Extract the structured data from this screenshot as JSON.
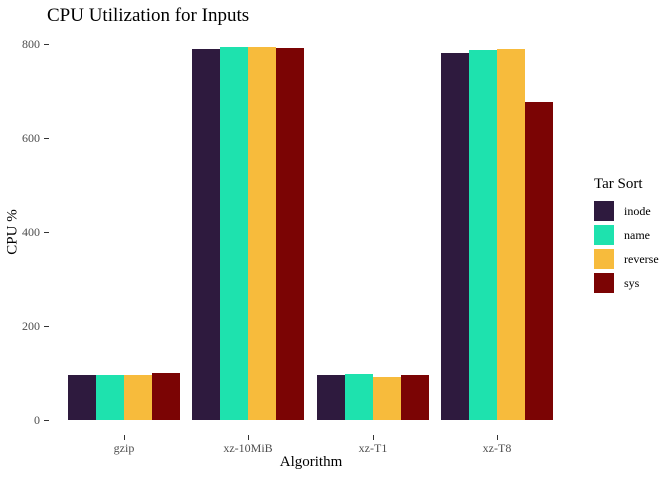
{
  "chart_data": {
    "type": "bar",
    "title": "CPU Utilization for Inputs",
    "xlabel": "Algorithm",
    "ylabel": "CPU %",
    "categories": [
      "gzip",
      "xz-10MiB",
      "xz-T1",
      "xz-T8"
    ],
    "series": [
      {
        "name": "inode",
        "color": "#2E1A3E",
        "values": [
          95,
          790,
          95,
          782
        ]
      },
      {
        "name": "name",
        "color": "#1EE2AE",
        "values": [
          96,
          794,
          97,
          788
        ]
      },
      {
        "name": "reverse",
        "color": "#F7BB3C",
        "values": [
          95,
          794,
          91,
          790
        ]
      },
      {
        "name": "sys",
        "color": "#7B0404",
        "values": [
          100,
          792,
          95,
          677
        ]
      }
    ],
    "ylim": [
      0,
      800
    ],
    "yticks": [
      0,
      200,
      400,
      600,
      800
    ],
    "grid": false,
    "legend_title": "Tar Sort",
    "legend_position": "right",
    "colors": {
      "background": "#ffffff",
      "axis_text": "#4d4d4d",
      "tick_mark": "#333333",
      "title_text": "#000000"
    }
  }
}
